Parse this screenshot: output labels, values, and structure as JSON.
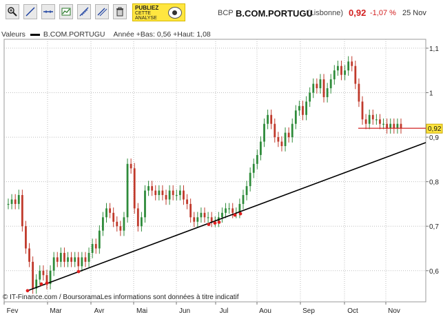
{
  "toolbar": {
    "buttons": [
      {
        "name": "zoom-icon"
      },
      {
        "name": "trendline-icon"
      },
      {
        "name": "parallel-lines-icon"
      },
      {
        "name": "horizontal-line-icon"
      },
      {
        "name": "indicator-icon"
      },
      {
        "name": "fibonacci-icon"
      },
      {
        "name": "channel-icon"
      },
      {
        "name": "trash-icon"
      }
    ],
    "ad_line1": "PUBLIEZ",
    "ad_line2": "CETTE",
    "ad_line3": "ANALYSE"
  },
  "quote": {
    "prefix": "BCP",
    "name": "B.COM.PORTUGU",
    "market": "(Lisbonne)",
    "price": "0,92",
    "change": "-1,07 %",
    "date": "25 Nov"
  },
  "legend": {
    "label": "Valeurs",
    "series": "B.COM.PORTUGU",
    "stats": "Année +Bas: 0,56 +Haut: 1,08"
  },
  "footer": "© IT-Finance.com / BoursoramaLes informations sont données à titre indicatif",
  "chart_data": {
    "type": "candlestick",
    "x_labels": [
      "Fev",
      "Mar",
      "Avr",
      "Mai",
      "Jun",
      "Jul",
      "Aou",
      "Sep",
      "Oct",
      "Nov"
    ],
    "y_ticks": [
      "0,6",
      "0,7",
      "0,8",
      "0,9",
      "1",
      "1,1"
    ],
    "ylim": [
      0.53,
      1.12
    ],
    "last_value_label": "0,92",
    "colors": {
      "up": "#2e8b3a",
      "down": "#c0392b",
      "grid": "#bdbdbd",
      "trend": "#000000",
      "support": "#e02020"
    },
    "close": [
      0.75,
      0.76,
      0.75,
      0.77,
      0.7,
      0.65,
      0.62,
      0.56,
      0.58,
      0.6,
      0.59,
      0.57,
      0.6,
      0.63,
      0.62,
      0.64,
      0.62,
      0.63,
      0.62,
      0.63,
      0.61,
      0.63,
      0.62,
      0.64,
      0.66,
      0.65,
      0.69,
      0.72,
      0.74,
      0.73,
      0.71,
      0.7,
      0.69,
      0.72,
      0.84,
      0.83,
      0.74,
      0.7,
      0.72,
      0.78,
      0.79,
      0.78,
      0.77,
      0.78,
      0.77,
      0.76,
      0.78,
      0.77,
      0.77,
      0.78,
      0.76,
      0.75,
      0.72,
      0.71,
      0.72,
      0.73,
      0.72,
      0.72,
      0.71,
      0.71,
      0.72,
      0.73,
      0.74,
      0.74,
      0.73,
      0.73,
      0.75,
      0.77,
      0.79,
      0.82,
      0.84,
      0.86,
      0.89,
      0.93,
      0.95,
      0.93,
      0.9,
      0.89,
      0.88,
      0.91,
      0.9,
      0.93,
      0.96,
      0.97,
      0.95,
      0.98,
      1.0,
      1.02,
      1.01,
      1.03,
      0.99,
      1.01,
      1.03,
      1.05,
      1.06,
      1.04,
      1.05,
      1.07,
      1.06,
      1.02,
      0.98,
      0.94,
      0.93,
      0.95,
      0.94,
      0.94,
      0.93,
      0.93,
      0.92,
      0.93,
      0.92,
      0.93,
      0.92
    ]
  }
}
